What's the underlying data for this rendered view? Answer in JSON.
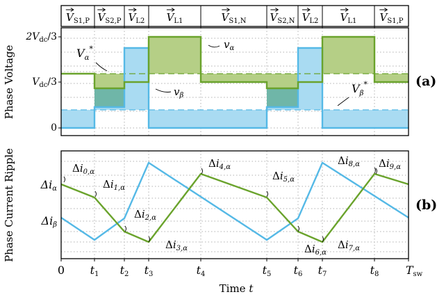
{
  "colors": {
    "green_line": "#6aa32c",
    "green_fill": "#b5cf86",
    "blue_line": "#55b9e6",
    "blue_fill": "#a9dbf2",
    "teal_fill": "#6fb6a8",
    "text": "#000000"
  },
  "header": {
    "segments": [
      {
        "sub": "S1,P"
      },
      {
        "sub": "S2,P"
      },
      {
        "sub": "L2"
      },
      {
        "sub": "L1"
      },
      {
        "sub": "S1,N"
      },
      {
        "sub": "S2,N"
      },
      {
        "sub": "L2"
      },
      {
        "sub": "L1"
      },
      {
        "sub": "S1,P"
      }
    ],
    "symbol": "V"
  },
  "panel_a": {
    "ylabel": "Phase Voltage",
    "tag": "(a)",
    "yticks": [
      {
        "label": "2V",
        "sub": "dc",
        "suffix": "/3"
      },
      {
        "label": "V",
        "sub": "dc",
        "suffix": "/3"
      },
      {
        "label": "0",
        "sub": "",
        "suffix": ""
      }
    ],
    "annotations": {
      "va": {
        "main": "v",
        "sub": "α"
      },
      "vb": {
        "main": "v",
        "sub": "β"
      },
      "Va_ref": {
        "main": "V",
        "sub": "α",
        "sup": "*"
      },
      "Vb_ref": {
        "main": "V",
        "sub": "β",
        "sup": "*"
      }
    }
  },
  "panel_b": {
    "ylabel": "Phase Current Ripple",
    "tag": "(b)",
    "ylabels": [
      {
        "main": "Δi",
        "sub": "α"
      },
      {
        "main": "Δi",
        "sub": "β"
      }
    ],
    "labels": [
      {
        "sub": "0,α"
      },
      {
        "sub": "1,α"
      },
      {
        "sub": "2,α"
      },
      {
        "sub": "3,α"
      },
      {
        "sub": "4,α"
      },
      {
        "sub": "5,α"
      },
      {
        "sub": "6,α"
      },
      {
        "sub": "7,α"
      },
      {
        "sub": "8,α"
      },
      {
        "sub": "9,α"
      }
    ]
  },
  "time_axis": {
    "xlabel_main": "Time",
    "xlabel_var": "t",
    "ticks": [
      {
        "main": "0",
        "sub": ""
      },
      {
        "main": "t",
        "sub": "1"
      },
      {
        "main": "t",
        "sub": "2"
      },
      {
        "main": "t",
        "sub": "3"
      },
      {
        "main": "t",
        "sub": "4"
      },
      {
        "main": "t",
        "sub": "5"
      },
      {
        "main": "t",
        "sub": "6"
      },
      {
        "main": "t",
        "sub": "7"
      },
      {
        "main": "t",
        "sub": "8"
      },
      {
        "main": "T",
        "sub": "sw"
      }
    ]
  }
}
